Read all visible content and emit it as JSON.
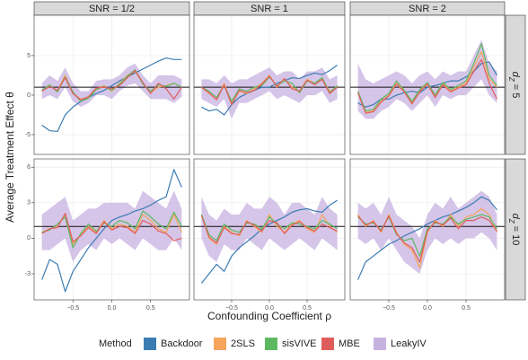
{
  "chart_data": {
    "type": "line",
    "x_label": "Confounding Coefficient ρ",
    "y_label": "Average Treatment Effect θ",
    "legend_title": "Method",
    "methods": [
      {
        "name": "Backdoor",
        "color": "#3b7cb3"
      },
      {
        "name": "2SLS",
        "color": "#f5a55c"
      },
      {
        "name": "sisVIVE",
        "color": "#5db862"
      },
      {
        "name": "MBE",
        "color": "#e05d5d"
      },
      {
        "name": "LeakyIV",
        "color": "#c7b2e0"
      }
    ],
    "columns": [
      "SNR = 1/2",
      "SNR = 1",
      "SNR = 2"
    ],
    "rows": [
      {
        "symbol": "d",
        "subscript": "Z",
        "rest": " = 5",
        "ylim": [
          -7.5,
          10.1
        ],
        "yticks": [
          -5,
          0,
          5
        ]
      },
      {
        "symbol": "d",
        "subscript": "Z",
        "rest": " = 10",
        "ylim": [
          -5.2,
          6.7
        ],
        "yticks": [
          -3,
          0,
          3,
          6
        ]
      }
    ],
    "reference_line": 1,
    "grid": true,
    "xlim": [
      -1,
      1
    ],
    "xticks": [
      {
        "value": -0.5,
        "label": "−0.5"
      },
      {
        "value": 0,
        "label": "0.0"
      },
      {
        "value": 0.5,
        "label": "0.5"
      }
    ],
    "x": [
      -0.9,
      -0.8,
      -0.7,
      -0.6,
      -0.5,
      -0.4,
      -0.3,
      -0.2,
      -0.1,
      0,
      0.1,
      0.2,
      0.3,
      0.4,
      0.5,
      0.6,
      0.7,
      0.8,
      0.9
    ],
    "panels": [
      [
        {
          "series": [
            {
              "values": [
                -3.8,
                -4.5,
                -4.6,
                -2.5,
                -1.5,
                -0.8,
                -0.3,
                0.2,
                0.6,
                1.2,
                1.8,
                2.3,
                2.8,
                3.3,
                3.8,
                4.3,
                4.7,
                4.5,
                4.5
              ]
            },
            {
              "values": [
                0.5,
                1.2,
                0.5,
                2.5,
                0.2,
                -0.5,
                -0.3,
                0.8,
                1.2,
                0.5,
                1.5,
                2.5,
                3.0,
                1.5,
                0.3,
                1.0,
                1.2,
                1.5,
                1.0
              ]
            },
            {
              "values": [
                0.6,
                1.3,
                0.4,
                2.3,
                0.4,
                -0.8,
                -0.4,
                0.7,
                1.1,
                0.6,
                1.4,
                2.4,
                3.2,
                1.4,
                0.5,
                1.3,
                1.1,
                1.5,
                1.0
              ]
            },
            {
              "values": [
                0.5,
                1.1,
                0.6,
                2.2,
                0.2,
                -0.6,
                -0.2,
                0.9,
                1.0,
                0.8,
                1.2,
                2.2,
                3.1,
                1.6,
                0.2,
                1.5,
                0.8,
                -0.5,
                1.0
              ]
            },
            {
              "lower": [
                -0.5,
                0,
                -0.5,
                1,
                -0.8,
                -1.5,
                -1,
                0,
                0,
                -0.5,
                0.5,
                1.2,
                1.5,
                0.5,
                -0.5,
                -0.5,
                -0.5,
                -1,
                -0.2
              ],
              "upper": [
                1.5,
                2.5,
                1.8,
                3.5,
                1.5,
                0.5,
                0.5,
                1.8,
                2.0,
                2.0,
                2.5,
                3.5,
                4,
                2.5,
                1.5,
                2.5,
                2.5,
                2.5,
                2
              ]
            }
          ]
        },
        {
          "series": [
            {
              "values": [
                -1.5,
                -2,
                -1.8,
                -2.5,
                -1.2,
                -0.3,
                0.2,
                0.6,
                1.0,
                1.0,
                1.5,
                1.8,
                2.2,
                2.1,
                2.5,
                2.8,
                2.6,
                3.1,
                3.8
              ]
            },
            {
              "values": [
                1,
                0.2,
                -0.5,
                1.5,
                -1,
                0.5,
                0.2,
                0.8,
                1.5,
                2.5,
                1.0,
                2.0,
                1.0,
                0.5,
                2.0,
                1.5,
                2.0,
                0.5,
                1.0
              ]
            },
            {
              "values": [
                1,
                0.5,
                -0.3,
                1.2,
                -0.8,
                0.8,
                0.5,
                1.0,
                1.2,
                2.3,
                1.2,
                1.8,
                1.5,
                0.3,
                1.8,
                1.5,
                2.2,
                0.3,
                1.2
              ]
            },
            {
              "values": [
                1,
                0.3,
                -0.6,
                1.3,
                -1.2,
                0.6,
                0.3,
                0.6,
                1.4,
                2.4,
                1.1,
                2.1,
                0.8,
                0.5,
                1.9,
                1.3,
                2.0,
                0.2,
                1.0
              ]
            },
            {
              "lower": [
                -0.5,
                -1,
                -1.5,
                -0.5,
                -3,
                -1,
                -1,
                -0.5,
                0,
                0.5,
                -0.5,
                0,
                -0.5,
                -1,
                0,
                0,
                0.5,
                -1,
                -0.5
              ],
              "upper": [
                2,
                2,
                1.5,
                2.5,
                1.5,
                2,
                2,
                2.5,
                3,
                3.5,
                2.5,
                3,
                3,
                2,
                3,
                3,
                3.5,
                2,
                2.5
              ]
            }
          ]
        },
        {
          "series": [
            {
              "values": [
                -1,
                -1.5,
                -1.2,
                -0.5,
                -0.5,
                0,
                0.3,
                0.5,
                0.3,
                1,
                1.2,
                1.5,
                1.8,
                1.8,
                2.3,
                3.0,
                4.0,
                4.2,
                2.5
              ]
            },
            {
              "values": [
                0.5,
                -2.2,
                -2,
                -0.8,
                0,
                1.5,
                0.5,
                -1,
                0.5,
                1.5,
                -0.2,
                1.5,
                0.5,
                1.0,
                1.5,
                3.5,
                5.5,
                2.0,
                1.0
              ]
            },
            {
              "values": [
                0.5,
                -2.0,
                -1.8,
                -0.5,
                0.2,
                1.8,
                0.6,
                -0.8,
                0.7,
                1.6,
                0,
                1.6,
                0.7,
                1.2,
                1.8,
                4.0,
                6.5,
                2.5,
                1.2
              ]
            },
            {
              "values": [
                0.3,
                -2.3,
                -2.1,
                -0.9,
                -0.1,
                1.4,
                0.4,
                -1.1,
                0.4,
                1.4,
                -0.3,
                1.3,
                0.4,
                0.9,
                1.3,
                3.0,
                4.5,
                1.5,
                -0.5
              ]
            },
            {
              "lower": [
                -2,
                -3,
                -3,
                -2,
                -1.5,
                -0.5,
                -1,
                -2,
                -1,
                0,
                -1.5,
                0,
                -0.5,
                0,
                0,
                1,
                2,
                0,
                -1
              ],
              "upper": [
                4,
                2,
                1.5,
                2,
                2.5,
                3,
                2.5,
                1.5,
                2.5,
                3,
                2,
                3,
                2.5,
                3,
                3,
                5,
                7,
                4,
                3
              ]
            }
          ]
        }
      ],
      [
        {
          "series": [
            {
              "values": [
                -3.5,
                -1.8,
                -2.2,
                -4.5,
                -2.8,
                -1.8,
                -0.8,
                0,
                0.8,
                1.5,
                1.8,
                2.0,
                2.3,
                2.5,
                2.8,
                3.2,
                3.5,
                5.8,
                4.3
              ]
            },
            {
              "values": [
                0.5,
                0.8,
                1.0,
                2.0,
                -0.5,
                0.3,
                1.0,
                0.5,
                1.5,
                0.8,
                1.2,
                1.0,
                0.5,
                2.0,
                1.5,
                0.8,
                0.5,
                2.0,
                0.5
              ]
            },
            {
              "values": [
                0.5,
                0.7,
                1.2,
                1.8,
                -0.8,
                0.4,
                1.2,
                0.6,
                1.3,
                1.0,
                1.5,
                1.3,
                0.8,
                2.3,
                1.8,
                1.2,
                0.8,
                2.2,
                1.0
              ]
            },
            {
              "values": [
                0.4,
                0.8,
                0.9,
                2.1,
                -0.3,
                0.2,
                0.9,
                0.4,
                1.4,
                0.7,
                1.0,
                0.9,
                0.4,
                1.5,
                1.2,
                0.6,
                0.4,
                -0.2,
                0
              ]
            },
            {
              "lower": [
                -1,
                -1,
                -0.5,
                0,
                -2,
                -1,
                -0.5,
                -1,
                0,
                -0.5,
                0,
                -0.5,
                -1,
                0,
                -0.5,
                -1,
                -1,
                0,
                -1
              ],
              "upper": [
                2,
                2.5,
                3,
                3.5,
                1.5,
                2,
                2.5,
                2.5,
                3,
                3,
                3,
                3,
                2.5,
                4,
                3.5,
                3,
                2.5,
                4,
                2.5
              ]
            }
          ]
        },
        {
          "series": [
            {
              "values": [
                -3.8,
                -3,
                -2.2,
                -2.8,
                -1.5,
                -0.8,
                -0.3,
                0.2,
                0.8,
                1.2,
                1.5,
                1.8,
                2.2,
                2.4,
                2.5,
                2.3,
                2.2,
                2.8,
                3.2
              ]
            },
            {
              "values": [
                2.0,
                0,
                -0.5,
                1.0,
                0.5,
                0.2,
                1.5,
                1.0,
                0.5,
                2.0,
                1.0,
                0.5,
                1.2,
                1.5,
                0.8,
                0.5,
                2.0,
                1.0,
                0.5
              ]
            },
            {
              "values": [
                2.0,
                0.3,
                -0.2,
                1.2,
                0.7,
                0.5,
                1.3,
                1.2,
                0.8,
                1.8,
                1.2,
                0.8,
                1.3,
                1.2,
                1.0,
                0.8,
                1.5,
                1.2,
                0.8
              ]
            },
            {
              "values": [
                1.9,
                0.1,
                -0.4,
                0.9,
                0.4,
                0.3,
                1.4,
                1.1,
                0.6,
                1.5,
                1.3,
                0.4,
                1.1,
                1.4,
                0.9,
                0.6,
                1.2,
                0.9,
                0.6
              ]
            },
            {
              "lower": [
                0,
                -1.5,
                -2,
                -0.5,
                -1,
                -1,
                0,
                -0.5,
                -1,
                0,
                -0.5,
                -1,
                -0.5,
                0,
                -0.5,
                -1,
                0,
                -0.5,
                -1
              ],
              "upper": [
                3.5,
                2,
                1.5,
                2.5,
                2,
                2,
                3,
                2.5,
                2.5,
                3.5,
                3,
                2,
                3,
                3,
                2.5,
                2,
                3.5,
                2.5,
                2
              ]
            }
          ]
        },
        {
          "series": [
            {
              "values": [
                -3.5,
                -2,
                -1.5,
                -1,
                -0.5,
                -0.2,
                0.2,
                0.5,
                0.8,
                1.2,
                1.5,
                1.8,
                2.0,
                2.3,
                2.6,
                3.0,
                3.5,
                3.2,
                2.4
              ]
            },
            {
              "values": [
                2.0,
                1.0,
                1.5,
                0.5,
                2.0,
                0.5,
                -0.5,
                -1.0,
                -2.5,
                0.5,
                1.5,
                1.0,
                2.0,
                1.0,
                1.8,
                2.0,
                2.5,
                2.0,
                0.5
              ]
            },
            {
              "values": [
                1.8,
                1.2,
                1.3,
                0.7,
                1.8,
                0.3,
                -0.2,
                0.0,
                -1.5,
                0.8,
                1.3,
                1.2,
                1.8,
                1.2,
                1.6,
                1.8,
                2.0,
                1.8,
                0.8
              ]
            },
            {
              "values": [
                1.9,
                1.1,
                1.4,
                0.6,
                1.9,
                0.4,
                -0.4,
                -0.8,
                -2.0,
                0.6,
                1.4,
                1.1,
                1.7,
                0.8,
                1.5,
                1.5,
                1.8,
                1.5,
                0.6
              ]
            },
            {
              "lower": [
                0,
                -0.5,
                0,
                -1,
                0,
                -1,
                -2,
                -2.5,
                -3,
                -1,
                0,
                -0.5,
                0,
                -0.5,
                0,
                0,
                0.5,
                0,
                -1
              ],
              "upper": [
                3,
                2.5,
                3,
                2,
                3.5,
                2,
                1.5,
                1,
                0,
                2,
                3,
                2.5,
                3.5,
                2.5,
                3,
                3.5,
                4,
                3.5,
                2
              ]
            }
          ]
        }
      ]
    ]
  }
}
